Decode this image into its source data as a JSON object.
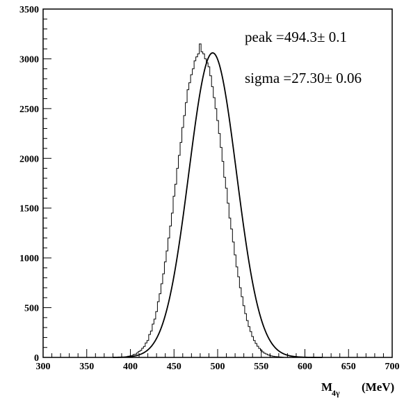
{
  "chart_data": {
    "type": "histogram_with_fit",
    "xlabel": {
      "main": "M",
      "subscript": "4γ",
      "unit": "(MeV)"
    },
    "ylabel": "",
    "xlim": [
      300,
      700
    ],
    "ylim": [
      0,
      3500
    ],
    "xticks": [
      300,
      350,
      400,
      450,
      500,
      550,
      600,
      650,
      700
    ],
    "yticks": [
      0,
      500,
      1000,
      1500,
      2000,
      2500,
      3000,
      3500
    ],
    "grid": false,
    "annotations": {
      "peak": "peak =494.3± 0.1",
      "sigma": "sigma =27.30± 0.06"
    },
    "fit": {
      "type": "gaussian",
      "peak": 494.3,
      "sigma": 27.3,
      "amplitude": 3060
    },
    "histogram": {
      "bin_edges_start": 395,
      "bin_width": 2,
      "counts": [
        8,
        12,
        15,
        18,
        30,
        32,
        45,
        60,
        70,
        92,
        110,
        145,
        170,
        230,
        265,
        335,
        385,
        460,
        560,
        640,
        740,
        840,
        960,
        1070,
        1200,
        1320,
        1450,
        1620,
        1740,
        1900,
        2030,
        2160,
        2310,
        2430,
        2560,
        2690,
        2760,
        2840,
        2900,
        2980,
        3020,
        3050,
        3150,
        3070,
        3050,
        3000,
        2960,
        2920,
        2830,
        2720,
        2610,
        2500,
        2380,
        2250,
        2110,
        1970,
        1810,
        1700,
        1550,
        1400,
        1290,
        1160,
        1030,
        910,
        810,
        700,
        610,
        520,
        440,
        370,
        310,
        260,
        210,
        170,
        140,
        112,
        90,
        70,
        55,
        42,
        34,
        25,
        20,
        15,
        11,
        9,
        7,
        5,
        4,
        3
      ]
    }
  }
}
